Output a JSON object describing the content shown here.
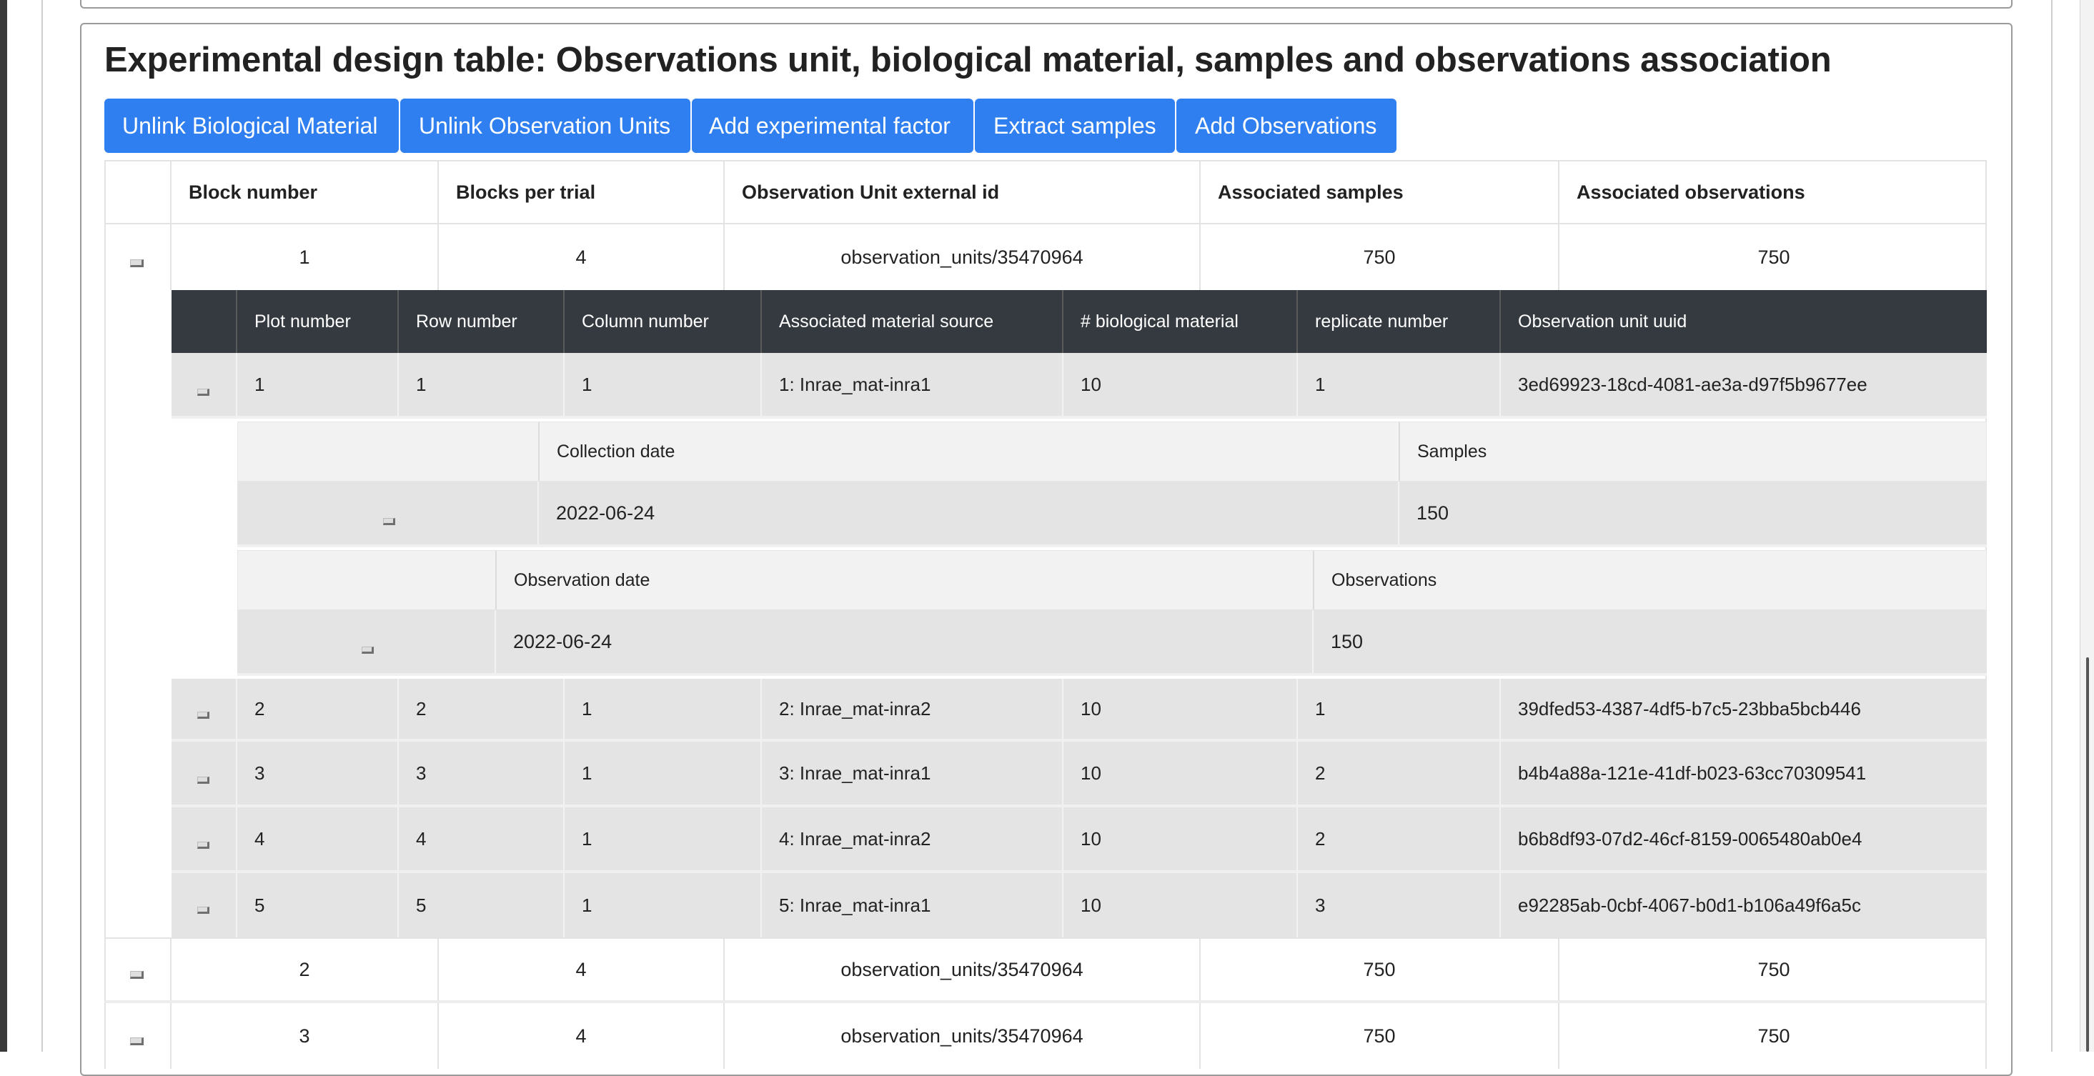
{
  "title": "Experimental design table: Observations unit, biological material, samples and observations association",
  "buttons": [
    "Unlink Biological Material",
    "Unlink Observation Units",
    "Add experimental factor",
    "Extract samples",
    "Add Observations"
  ],
  "main_table": {
    "headers": [
      "Block number",
      "Blocks per trial",
      "Observation Unit external id",
      "Associated samples",
      "Associated observations"
    ],
    "rows": [
      [
        "1",
        "4",
        "observation_units/35470964",
        "750",
        "750"
      ],
      [
        "2",
        "4",
        "observation_units/35470964",
        "750",
        "750"
      ],
      [
        "3",
        "4",
        "observation_units/35470964",
        "750",
        "750"
      ]
    ]
  },
  "plot_table": {
    "headers": [
      "Plot number",
      "Row number",
      "Column number",
      "Associated material source",
      "# biological material",
      "replicate number",
      "Observation unit uuid"
    ],
    "rows": [
      [
        "1",
        "1",
        "1",
        "1: Inrae_mat-inra1",
        "10",
        "1",
        "3ed69923-18cd-4081-ae3a-d97f5b9677ee"
      ],
      [
        "2",
        "2",
        "1",
        "2: Inrae_mat-inra2",
        "10",
        "1",
        "39dfed53-4387-4df5-b7c5-23bba5bcb446"
      ],
      [
        "3",
        "3",
        "1",
        "3: Inrae_mat-inra1",
        "10",
        "2",
        "b4b4a88a-121e-41df-b023-63cc70309541"
      ],
      [
        "4",
        "4",
        "1",
        "4: Inrae_mat-inra2",
        "10",
        "2",
        "b6b8df93-07d2-46cf-8159-0065480ab0e4"
      ],
      [
        "5",
        "5",
        "1",
        "5: Inrae_mat-inra1",
        "10",
        "3",
        "e92285ab-0cbf-4067-b0d1-b106a49f6a5c"
      ]
    ]
  },
  "samples_table": {
    "headers": [
      "",
      "Collection date",
      "Samples"
    ],
    "rows": [
      [
        "",
        "2022-06-24",
        "150"
      ]
    ]
  },
  "observations_table": {
    "headers": [
      "",
      "Observation date",
      "Observations"
    ],
    "rows": [
      [
        "",
        "2022-06-24",
        "150"
      ]
    ]
  },
  "colors": {
    "button_bg": "#2f7ff0",
    "sub_header_bg": "#343a40",
    "row_grey": "#e4e4e4",
    "nested_header_bg": "#f2f2f2"
  }
}
